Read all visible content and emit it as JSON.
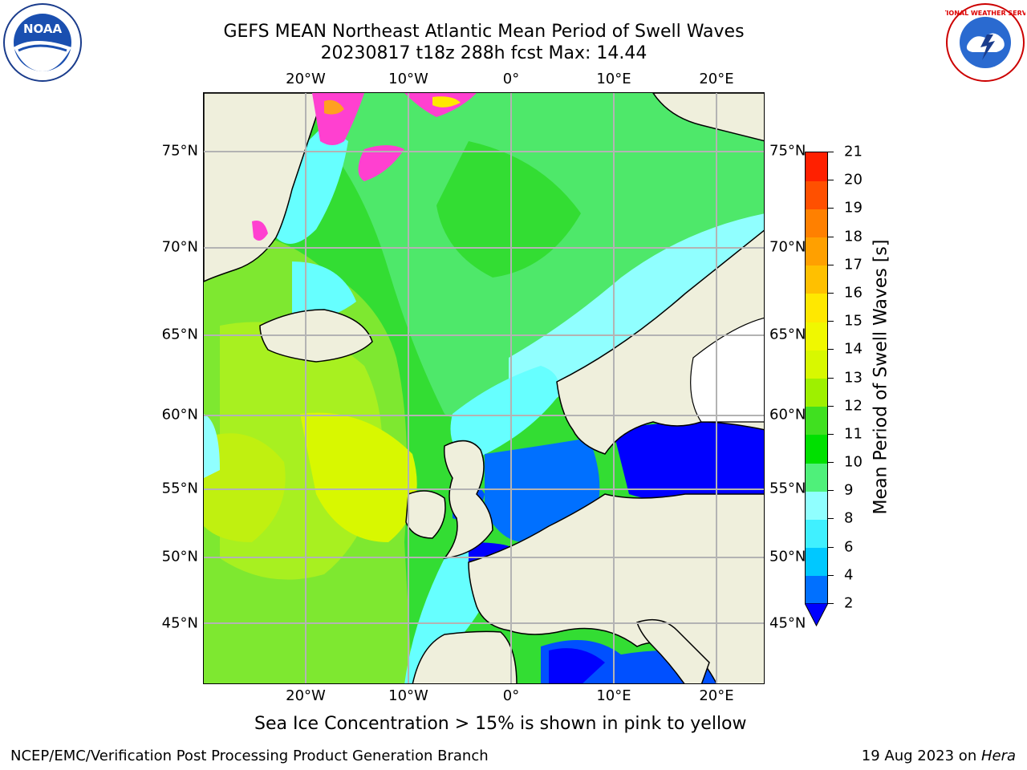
{
  "title": {
    "line1": "GEFS MEAN Northeast Atlantic Mean Period of Swell Waves",
    "line2": "20230817 t18z 288h fcst   Max: 14.44"
  },
  "map": {
    "region": "Northeast Atlantic",
    "lon_ticks": [
      "20°W",
      "10°W",
      "0°",
      "10°E",
      "20°E"
    ],
    "lat_ticks": [
      "75°N",
      "70°N",
      "65°N",
      "60°N",
      "55°N",
      "50°N",
      "45°N"
    ],
    "sea_ice_color": "#ff40d0"
  },
  "colorbar": {
    "label": "Mean Period of Swell Waves [s]",
    "ticks": [
      "2",
      "4",
      "6",
      "8",
      "9",
      "10",
      "11",
      "12",
      "13",
      "14",
      "15",
      "16",
      "17",
      "18",
      "19",
      "20",
      "21"
    ],
    "colors": [
      "#0070ff",
      "#00c8ff",
      "#40f0ff",
      "#90ffff",
      "#4ff07a",
      "#00e000",
      "#40e020",
      "#9ef000",
      "#d8f800",
      "#f0f800",
      "#ffe800",
      "#ffc000",
      "#ffa000",
      "#ff8000",
      "#ff5000",
      "#ff2000"
    ],
    "under_color": "#0000ff"
  },
  "caption": "Sea Ice Concentration > 15% is shown in pink to yellow",
  "footer": {
    "left": "NCEP/EMC/Verification Post Processing Product Generation Branch",
    "right_prefix": "19 Aug 2023 on ",
    "right_machine": "Hera"
  },
  "logos": {
    "noaa": "NOAA",
    "nws": "NATIONAL WEATHER SERVICE"
  }
}
